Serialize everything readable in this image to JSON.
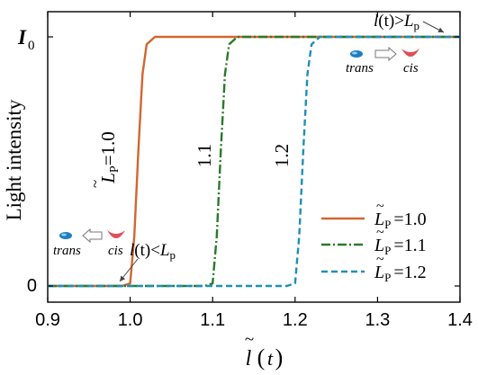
{
  "chart_data": {
    "type": "line",
    "ylabel": "Light intensity",
    "xlabel_main": "l",
    "xlabel_paren": "t",
    "xlim": [
      0.9,
      1.4
    ],
    "x_ticks": [
      "0.9",
      "1.0",
      "1.1",
      "1.2",
      "1.3",
      "1.4"
    ],
    "y_ticks": {
      "zero": "0",
      "top_main": "I",
      "top_sub": "0"
    },
    "ylim": [
      0,
      1
    ],
    "series": [
      {
        "name": "L̃P = 1.0",
        "legend_value": "1.0",
        "color": "#d2662f",
        "dash": "",
        "x": [
          0.9,
          0.99,
          1.0,
          1.005,
          1.01,
          1.015,
          1.02,
          1.03,
          1.4
        ],
        "y": [
          0,
          0,
          0.01,
          0.2,
          0.55,
          0.85,
          0.97,
          1,
          1
        ]
      },
      {
        "name": "L̃P = 1.1",
        "legend_value": "1.1",
        "color": "#2a7a2a",
        "dash": "10,3,2,3",
        "x": [
          0.9,
          1.09,
          1.1,
          1.105,
          1.11,
          1.115,
          1.12,
          1.13,
          1.4
        ],
        "y": [
          0,
          0,
          0.01,
          0.2,
          0.55,
          0.85,
          0.97,
          1,
          1
        ]
      },
      {
        "name": "L̃P = 1.2",
        "legend_value": "1.2",
        "color": "#1f8fb8",
        "dash": "7,4",
        "x": [
          0.9,
          1.19,
          1.2,
          1.205,
          1.21,
          1.215,
          1.22,
          1.23,
          1.4
        ],
        "y": [
          0,
          0,
          0.01,
          0.2,
          0.55,
          0.85,
          0.97,
          1,
          1
        ]
      }
    ],
    "curve_labels": {
      "first_prefix": "L",
      "first_sub": "P",
      "first_value": "=1.0",
      "second": "1.1",
      "third": "1.2"
    },
    "legend": {
      "symbol": "L",
      "sub": "P",
      "eq": "="
    },
    "annotations": {
      "top": {
        "text_l": "l",
        "text_t": "(t)",
        "text_gt": ">",
        "text_L": "L",
        "text_p": "p",
        "trans": "trans",
        "cis": "cis"
      },
      "bottom": {
        "text_l": "l",
        "text_t": "(t)",
        "text_lt": "<",
        "text_L": "L",
        "text_p": "p",
        "trans": "trans",
        "cis": "cis"
      }
    },
    "colors": {
      "trans_molecule": "#1e7fc0",
      "cis_molecule": "#e0505a",
      "arrow": "#777777"
    }
  }
}
